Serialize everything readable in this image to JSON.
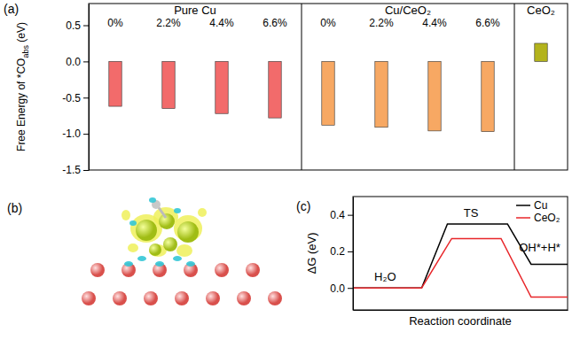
{
  "chart_data": [
    {
      "type": "bar",
      "panel_label": "(a)",
      "ylabel": [
        "Free Energy of *CO",
        "abs",
        " (eV)"
      ],
      "categories": [
        "0%",
        "2.2%",
        "4.4%",
        "6.6%",
        "0%",
        "2.2%",
        "4.4%",
        "6.6%",
        null
      ],
      "values": [
        -0.62,
        -0.65,
        -0.72,
        -0.78,
        -0.88,
        -0.91,
        -0.96,
        -0.97,
        0.25
      ],
      "colors": [
        "#f26b6b",
        "#f26b6b",
        "#f26b6b",
        "#f26b6b",
        "#f7a863",
        "#f7a863",
        "#f7a863",
        "#f7a863",
        "#b3b31c"
      ],
      "groups": [
        {
          "name": "Pure Cu",
          "size": 4
        },
        {
          "name": "Cu/CeO₂",
          "size": 4
        },
        {
          "name": "CeO₂",
          "size": 1
        }
      ],
      "ylim": [
        -1.5,
        0.8
      ],
      "yticks": [
        -1.5,
        {
          "value": -1,
          "label": "-1.0"
        },
        -0.5,
        {
          "value": 0,
          "label": "0.0"
        },
        0.5
      ]
    },
    {
      "type": "line",
      "panel_label": "(c)",
      "ylabel": "ΔG (eV)",
      "xlabel": "Reaction coordinate",
      "xlim": [
        0,
        10
      ],
      "ylim": [
        -0.12,
        0.5
      ],
      "yticks": [
        {
          "value": 0,
          "label": "0.0"
        },
        0.2,
        0.4
      ],
      "tick_labels": "y",
      "legend": "upper right",
      "series": [
        {
          "name": "Cu",
          "color": "#000000",
          "x": [
            0,
            3.2,
            4.4,
            7.2,
            8.3,
            10
          ],
          "values": [
            0,
            0,
            0.35,
            0.35,
            0.13,
            0.13
          ]
        },
        {
          "name": "CeO₂",
          "color": "#e8262a",
          "x": [
            0,
            3.2,
            4.6,
            6.9,
            8.3,
            10
          ],
          "values": [
            0,
            0,
            0.27,
            0.27,
            -0.05,
            -0.05
          ]
        }
      ],
      "annotations": [
        {
          "text": "H₂O",
          "x": 1.5,
          "y": 0.04
        },
        {
          "text": "TS",
          "x": 5.5,
          "y": 0.39
        },
        {
          "text": "OH*+H*",
          "x": 8.7,
          "y": 0.2
        }
      ]
    }
  ],
  "image_panel": {
    "label": "(b)"
  }
}
